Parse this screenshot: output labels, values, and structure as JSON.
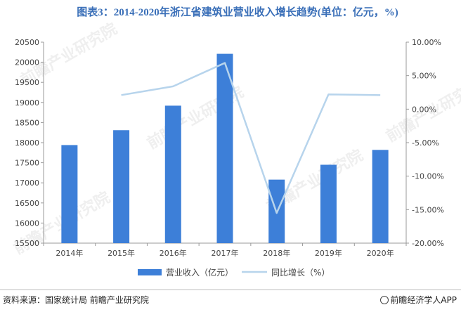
{
  "title": "图表3：2014-2020年浙江省建筑业营业收入增长趋势(单位：亿元，%)",
  "source": "资料来源：国家统计局 前瞻产业研究院",
  "brand": "前瞻经济学人APP",
  "watermark": "前瞻产业研究院",
  "colors": {
    "bar": "#3d7fd8",
    "line": "#b7d4ec",
    "title": "#3a6fb8",
    "axis": "#999999"
  },
  "chart_data": {
    "type": "bar+line",
    "categories": [
      "2014年",
      "2015年",
      "2016年",
      "2017年",
      "2018年",
      "2019年",
      "2020年"
    ],
    "series": [
      {
        "name": "营业收入（亿元）",
        "type": "bar",
        "axis": "left",
        "values": [
          17940,
          18310,
          18920,
          20210,
          17080,
          17450,
          17820
        ]
      },
      {
        "name": "同比增长（%）",
        "type": "line",
        "axis": "right",
        "values": [
          null,
          2.1,
          3.4,
          6.9,
          -15.5,
          2.2,
          2.1
        ]
      }
    ],
    "left_axis": {
      "ticks": [
        15500,
        16000,
        16500,
        17000,
        17500,
        18000,
        18500,
        19000,
        19500,
        20000,
        20500
      ],
      "range": [
        15500,
        20500
      ]
    },
    "right_axis": {
      "ticks": [
        "10.00%",
        "5.00%",
        "0.00%",
        "-5.00%",
        "-10.00%",
        "-15.00%",
        "-20.00%"
      ],
      "range": [
        -20,
        10
      ]
    },
    "legend_position": "bottom-center",
    "grid": false
  }
}
